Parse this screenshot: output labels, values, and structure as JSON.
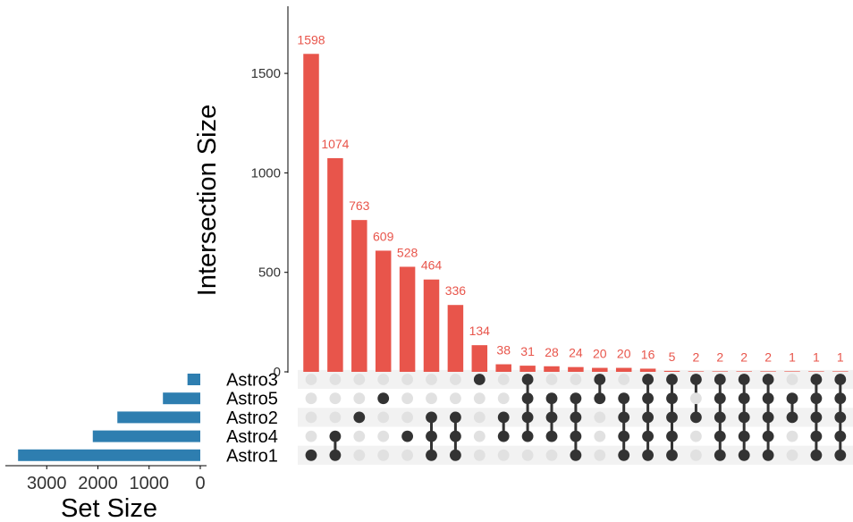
{
  "chart_data": {
    "type": "upset",
    "ylabel": "Intersection Size",
    "set_size_label": "Set Size",
    "bar_color": "#e8554b",
    "set_bar_color": "#2e7eb0",
    "dot_on_color": "#333333",
    "dot_off_color": "#e1e1e1",
    "row_band_color": "#f2f2f2",
    "ylim": [
      0,
      1850
    ],
    "yticks": [
      0,
      500,
      1000,
      1500
    ],
    "set_size_ticks": [
      3000,
      2000,
      1000,
      0
    ],
    "set_size_max": 3700,
    "sets": [
      {
        "name": "Astro3",
        "size": 250
      },
      {
        "name": "Astro5",
        "size": 730
      },
      {
        "name": "Astro2",
        "size": 1620
      },
      {
        "name": "Astro4",
        "size": 2100
      },
      {
        "name": "Astro1",
        "size": 3560
      }
    ],
    "intersections": [
      {
        "size": 1598,
        "sets": [
          "Astro1"
        ]
      },
      {
        "size": 1074,
        "sets": [
          "Astro4",
          "Astro1"
        ]
      },
      {
        "size": 763,
        "sets": [
          "Astro2"
        ]
      },
      {
        "size": 609,
        "sets": [
          "Astro5"
        ]
      },
      {
        "size": 528,
        "sets": [
          "Astro4"
        ]
      },
      {
        "size": 464,
        "sets": [
          "Astro2",
          "Astro4",
          "Astro1"
        ]
      },
      {
        "size": 336,
        "sets": [
          "Astro2",
          "Astro4",
          "Astro1"
        ]
      },
      {
        "size": 134,
        "sets": [
          "Astro3"
        ]
      },
      {
        "size": 38,
        "sets": [
          "Astro2",
          "Astro4"
        ]
      },
      {
        "size": 31,
        "sets": [
          "Astro3",
          "Astro5",
          "Astro2",
          "Astro4"
        ]
      },
      {
        "size": 28,
        "sets": [
          "Astro5",
          "Astro2",
          "Astro4"
        ]
      },
      {
        "size": 24,
        "sets": [
          "Astro5",
          "Astro2",
          "Astro4",
          "Astro1"
        ]
      },
      {
        "size": 20,
        "sets": [
          "Astro3",
          "Astro5"
        ]
      },
      {
        "size": 20,
        "sets": [
          "Astro5",
          "Astro2",
          "Astro4",
          "Astro1"
        ]
      },
      {
        "size": 16,
        "sets": [
          "Astro3",
          "Astro5",
          "Astro2",
          "Astro4",
          "Astro1"
        ]
      },
      {
        "size": 5,
        "sets": [
          "Astro3",
          "Astro5",
          "Astro2",
          "Astro4",
          "Astro1"
        ]
      },
      {
        "size": 2,
        "sets": [
          "Astro3",
          "Astro2"
        ]
      },
      {
        "size": 2,
        "sets": [
          "Astro3",
          "Astro5",
          "Astro2",
          "Astro4",
          "Astro1"
        ]
      },
      {
        "size": 2,
        "sets": [
          "Astro3",
          "Astro5",
          "Astro2",
          "Astro4",
          "Astro1"
        ]
      },
      {
        "size": 2,
        "sets": [
          "Astro3",
          "Astro5",
          "Astro2",
          "Astro4",
          "Astro1"
        ]
      },
      {
        "size": 1,
        "sets": [
          "Astro5",
          "Astro2"
        ]
      },
      {
        "size": 1,
        "sets": [
          "Astro3",
          "Astro5",
          "Astro2",
          "Astro4",
          "Astro1"
        ]
      },
      {
        "size": 1,
        "sets": [
          "Astro3",
          "Astro5",
          "Astro2",
          "Astro4",
          "Astro1"
        ]
      }
    ]
  }
}
